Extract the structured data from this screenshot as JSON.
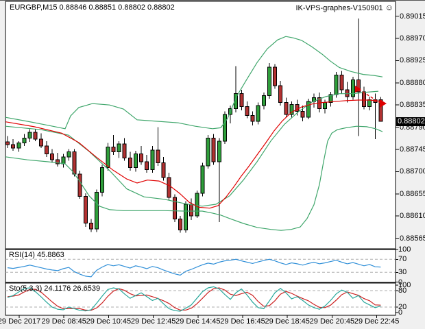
{
  "header": {
    "title": "EURGBP,M15 0.88846 0.88851 0.88802 0.88802",
    "watermark": "IK-VPS-graphes-V150901",
    "smiley": "☺"
  },
  "colors": {
    "bull": "#2E9E3A",
    "bear": "#B23232",
    "wick": "#000000",
    "band": "#3FA66B",
    "ma": "#E00000",
    "rsi": "#2F8FD8",
    "stoch_k": "#26A69A",
    "stoch_d": "#CC2222",
    "level_dash": "#ADADAD",
    "tag_bg": "#000000",
    "tag_fg": "#FFFFFF",
    "panel_bg": "#FFFFFF",
    "frame": "#000000",
    "page_bg": "#F0F0F0",
    "signal": "#DD0000"
  },
  "chart_data": {
    "type": "candlestick",
    "symbol": "EURGBP",
    "timeframe": "M15",
    "title": "EURGBP,M15 0.88846 0.88851 0.88802 0.88802",
    "current_ohlc": {
      "open": 0.88846,
      "high": 0.88851,
      "low": 0.88802,
      "close": 0.88802
    },
    "price_axis": {
      "ticks": [
        "0.89015",
        "0.88970",
        "0.88925",
        "0.88880",
        "0.88835",
        "0.88790",
        "0.88745",
        "0.88700",
        "0.88655",
        "0.88610",
        "0.88565"
      ],
      "current_label": "0.88802"
    },
    "time_axis": [
      "29 Dec 2017",
      "29 Dec 08:45",
      "29 Dec 10:45",
      "29 Dec 12:45",
      "29 Dec 14:45",
      "29 Dec 16:45",
      "29 Dec 18:45",
      "29 Dec 20:45",
      "29 Dec 22:45"
    ],
    "candles_unit": "price*100000",
    "candles": [
      [
        88760,
        88772,
        88748,
        88755
      ],
      [
        88755,
        88766,
        88742,
        88748
      ],
      [
        88748,
        88762,
        88740,
        88758
      ],
      [
        88758,
        88776,
        88752,
        88768
      ],
      [
        88768,
        88786,
        88760,
        88780
      ],
      [
        88780,
        88786,
        88762,
        88766
      ],
      [
        88766,
        88778,
        88748,
        88752
      ],
      [
        88752,
        88762,
        88730,
        88736
      ],
      [
        88736,
        88746,
        88718,
        88724
      ],
      [
        88724,
        88738,
        88710,
        88716
      ],
      [
        88716,
        88736,
        88708,
        88730
      ],
      [
        88730,
        88746,
        88722,
        88740
      ],
      [
        88740,
        88746,
        88690,
        88695
      ],
      [
        88695,
        88702,
        88645,
        88650
      ],
      [
        88650,
        88656,
        88588,
        88596
      ],
      [
        88596,
        88604,
        88578,
        88584
      ],
      [
        88584,
        88664,
        88578,
        88658
      ],
      [
        88658,
        88714,
        88650,
        88708
      ],
      [
        88708,
        88758,
        88702,
        88750
      ],
      [
        88750,
        88774,
        88734,
        88740
      ],
      [
        88740,
        88762,
        88728,
        88756
      ],
      [
        88756,
        88768,
        88722,
        88728
      ],
      [
        88728,
        88740,
        88702,
        88708
      ],
      [
        88708,
        88742,
        88700,
        88736
      ],
      [
        88736,
        88752,
        88714,
        88720
      ],
      [
        88720,
        88734,
        88698,
        88704
      ],
      [
        88704,
        88752,
        88698,
        88744
      ],
      [
        88744,
        88790,
        88712,
        88718
      ],
      [
        88718,
        88730,
        88682,
        88688
      ],
      [
        88688,
        88698,
        88642,
        88648
      ],
      [
        88648,
        88654,
        88598,
        88604
      ],
      [
        88604,
        88610,
        88576,
        88582
      ],
      [
        88582,
        88640,
        88576,
        88634
      ],
      [
        88634,
        88646,
        88602,
        88610
      ],
      [
        88610,
        88662,
        88606,
        88656
      ],
      [
        88656,
        88718,
        88650,
        88712
      ],
      [
        88712,
        88774,
        88706,
        88768
      ],
      [
        88768,
        88776,
        88714,
        88720
      ],
      [
        88720,
        88768,
        88598,
        88762
      ],
      [
        88762,
        88822,
        88756,
        88816
      ],
      [
        88816,
        88834,
        88798,
        88828
      ],
      [
        88828,
        88914,
        88820,
        88858
      ],
      [
        88858,
        88866,
        88824,
        88832
      ],
      [
        88832,
        88842,
        88808,
        88814
      ],
      [
        88814,
        88822,
        88794,
        88802
      ],
      [
        88802,
        88840,
        88796,
        88834
      ],
      [
        88834,
        88860,
        88826,
        88854
      ],
      [
        88854,
        88920,
        88848,
        88912
      ],
      [
        88912,
        88918,
        88868,
        88874
      ],
      [
        88874,
        88884,
        88834,
        88840
      ],
      [
        88840,
        88850,
        88810,
        88816
      ],
      [
        88816,
        88842,
        88808,
        88836
      ],
      [
        88836,
        88846,
        88814,
        88822
      ],
      [
        88822,
        88834,
        88802,
        88810
      ],
      [
        88810,
        88848,
        88806,
        88842
      ],
      [
        88842,
        88858,
        88830,
        88850
      ],
      [
        88850,
        88860,
        88820,
        88828
      ],
      [
        88828,
        88846,
        88818,
        88840
      ],
      [
        88840,
        88862,
        88832,
        88856
      ],
      [
        88856,
        88902,
        88850,
        88896
      ],
      [
        88896,
        88904,
        88858,
        88866
      ],
      [
        88866,
        88882,
        88840,
        88852
      ],
      [
        88852,
        88892,
        88846,
        88886
      ],
      [
        88886,
        89010,
        88772,
        88862
      ],
      [
        88862,
        88872,
        88826,
        88832
      ],
      [
        88832,
        88852,
        88824,
        88846
      ],
      [
        88846,
        88858,
        88766,
        88840
      ],
      [
        88846,
        88851,
        88802,
        88802
      ]
    ],
    "overlays": {
      "bollinger_upper": [
        [
          8,
          88810
        ],
        [
          40,
          88802
        ],
        [
          70,
          88794
        ],
        [
          95,
          88787
        ],
        [
          103,
          88813
        ],
        [
          115,
          88830
        ],
        [
          135,
          88838
        ],
        [
          160,
          88835
        ],
        [
          180,
          88827
        ],
        [
          200,
          88805
        ],
        [
          230,
          88802
        ],
        [
          260,
          88799
        ],
        [
          285,
          88792
        ],
        [
          310,
          88787
        ],
        [
          322,
          88789
        ],
        [
          332,
          88808
        ],
        [
          345,
          88852
        ],
        [
          360,
          88887
        ],
        [
          375,
          88921
        ],
        [
          390,
          88949
        ],
        [
          405,
          88967
        ],
        [
          417,
          88974
        ],
        [
          428,
          88971
        ],
        [
          440,
          88966
        ],
        [
          455,
          88953
        ],
        [
          470,
          88938
        ],
        [
          482,
          88924
        ],
        [
          495,
          88911
        ],
        [
          512,
          88903
        ],
        [
          530,
          88897
        ],
        [
          545,
          88895
        ],
        [
          558,
          88892
        ]
      ],
      "bollinger_middle": [
        [
          8,
          88792
        ],
        [
          60,
          88785
        ],
        [
          100,
          88774
        ],
        [
          130,
          88741
        ],
        [
          160,
          88702
        ],
        [
          185,
          88665
        ],
        [
          210,
          88649
        ],
        [
          240,
          88644
        ],
        [
          270,
          88635
        ],
        [
          295,
          88630
        ],
        [
          315,
          88634
        ],
        [
          335,
          88651
        ],
        [
          355,
          88683
        ],
        [
          375,
          88720
        ],
        [
          395,
          88762
        ],
        [
          415,
          88796
        ],
        [
          435,
          88821
        ],
        [
          455,
          88841
        ],
        [
          475,
          88852
        ],
        [
          495,
          88858
        ],
        [
          515,
          88858
        ],
        [
          535,
          88861
        ],
        [
          552,
          88863
        ]
      ],
      "bollinger_lower": [
        [
          8,
          88730
        ],
        [
          40,
          88724
        ],
        [
          70,
          88720
        ],
        [
          95,
          88716
        ],
        [
          105,
          88702
        ],
        [
          115,
          88683
        ],
        [
          130,
          88651
        ],
        [
          145,
          88630
        ],
        [
          160,
          88623
        ],
        [
          180,
          88621
        ],
        [
          210,
          88621
        ],
        [
          240,
          88621
        ],
        [
          270,
          88620
        ],
        [
          295,
          88620
        ],
        [
          310,
          88616
        ],
        [
          322,
          88612
        ],
        [
          335,
          88605
        ],
        [
          355,
          88595
        ],
        [
          375,
          88587
        ],
        [
          395,
          88583
        ],
        [
          410,
          88581
        ],
        [
          425,
          88583
        ],
        [
          438,
          88588
        ],
        [
          448,
          88605
        ],
        [
          458,
          88633
        ],
        [
          466,
          88674
        ],
        [
          472,
          88720
        ],
        [
          478,
          88762
        ],
        [
          484,
          88778
        ],
        [
          492,
          88785
        ],
        [
          505,
          88789
        ],
        [
          520,
          88792
        ],
        [
          535,
          88791
        ],
        [
          548,
          88787
        ],
        [
          558,
          88781
        ]
      ],
      "ma_red": [
        [
          8,
          88801
        ],
        [
          50,
          88791
        ],
        [
          90,
          88778
        ],
        [
          115,
          88759
        ],
        [
          140,
          88730
        ],
        [
          165,
          88703
        ],
        [
          185,
          88685
        ],
        [
          200,
          88677
        ],
        [
          215,
          88683
        ],
        [
          232,
          88681
        ],
        [
          248,
          88671
        ],
        [
          262,
          88656
        ],
        [
          276,
          88638
        ],
        [
          290,
          88628
        ],
        [
          306,
          88626
        ],
        [
          318,
          88631
        ],
        [
          330,
          88649
        ],
        [
          342,
          88671
        ],
        [
          352,
          88691
        ],
        [
          362,
          88709
        ],
        [
          375,
          88734
        ],
        [
          388,
          88759
        ],
        [
          400,
          88783
        ],
        [
          412,
          88803
        ],
        [
          425,
          88820
        ],
        [
          440,
          88831
        ],
        [
          455,
          88837
        ],
        [
          470,
          88840
        ],
        [
          487,
          88842
        ],
        [
          505,
          88844
        ],
        [
          523,
          88845
        ],
        [
          540,
          88845
        ],
        [
          558,
          88842
        ]
      ]
    },
    "indicators": {
      "rsi": {
        "label": "RSI(14) 45.8863",
        "period": 14,
        "value": 45.8863,
        "levels": [
          70,
          30
        ],
        "axis": [
          "100",
          "70",
          "30",
          "0"
        ],
        "axis_values": [
          100,
          70,
          30,
          0
        ],
        "values": [
          44,
          42,
          45,
          48,
          52,
          48,
          44,
          40,
          37,
          35,
          41,
          45,
          32,
          24,
          18,
          16,
          36,
          46,
          54,
          50,
          53,
          48,
          43,
          50,
          46,
          41,
          48,
          44,
          37,
          31,
          25,
          21,
          33,
          39,
          46,
          53,
          58,
          55,
          61,
          65,
          67,
          70,
          65,
          61,
          57,
          62,
          66,
          70,
          65,
          59,
          54,
          59,
          56,
          52,
          57,
          61,
          56,
          59,
          63,
          67,
          61,
          56,
          60,
          55,
          50,
          54,
          47,
          46
        ]
      },
      "stochastic": {
        "label": "Sto(5,3,3) 24.1176 26.6539",
        "k_value": 24.1176,
        "d_value": 26.6539,
        "levels": [
          80,
          20
        ],
        "axis": [
          "100",
          "80",
          "20",
          "0"
        ],
        "axis_values": [
          100,
          80,
          20,
          0
        ],
        "k": [
          55,
          62,
          75,
          88,
          90,
          76,
          58,
          38,
          20,
          12,
          10,
          20,
          14,
          8,
          6,
          10,
          34,
          60,
          84,
          90,
          86,
          68,
          52,
          62,
          72,
          58,
          44,
          52,
          32,
          14,
          7,
          5,
          16,
          28,
          52,
          76,
          90,
          94,
          86,
          66,
          48,
          72,
          86,
          64,
          38,
          18,
          14,
          42,
          72,
          88,
          72,
          50,
          58,
          44,
          28,
          18,
          12,
          24,
          44,
          68,
          82,
          74,
          52,
          62,
          38,
          28,
          18,
          24
        ],
        "d": [
          58,
          60,
          64,
          75,
          84,
          85,
          75,
          57,
          39,
          23,
          14,
          14,
          15,
          14,
          9,
          8,
          17,
          35,
          59,
          78,
          87,
          81,
          69,
          61,
          62,
          64,
          58,
          51,
          43,
          33,
          18,
          9,
          9,
          16,
          32,
          52,
          73,
          87,
          90,
          82,
          67,
          62,
          69,
          74,
          63,
          40,
          23,
          25,
          43,
          67,
          77,
          70,
          60,
          51,
          43,
          30,
          19,
          18,
          27,
          45,
          65,
          75,
          69,
          63,
          51,
          43,
          28,
          27
        ]
      }
    },
    "signal_marker": {
      "from": [
        523,
        129
      ],
      "to": [
        556,
        150
      ]
    }
  }
}
